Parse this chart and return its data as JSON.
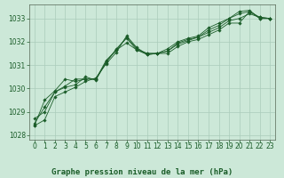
{
  "title": "Graphe pression niveau de la mer (hPa)",
  "background_color": "#cce8d8",
  "plot_bg_color": "#cce8d8",
  "grid_color": "#aaccbb",
  "line_color": "#1a5c28",
  "marker_color": "#1a5c28",
  "axis_color": "#556655",
  "xlim": [
    -0.5,
    23.5
  ],
  "ylim": [
    1027.8,
    1033.6
  ],
  "yticks": [
    1028,
    1029,
    1030,
    1031,
    1032,
    1033
  ],
  "xticks": [
    0,
    1,
    2,
    3,
    4,
    5,
    6,
    7,
    8,
    9,
    10,
    11,
    12,
    13,
    14,
    15,
    16,
    17,
    18,
    19,
    20,
    21,
    22,
    23
  ],
  "series": [
    [
      1028.4,
      1028.65,
      1029.65,
      1029.85,
      1030.05,
      1030.3,
      1030.45,
      1031.05,
      1031.55,
      1032.25,
      1031.75,
      1031.45,
      1031.5,
      1031.5,
      1031.8,
      1032.0,
      1032.1,
      1032.3,
      1032.5,
      1032.8,
      1032.8,
      1033.3,
      1033.05,
      1033.0
    ],
    [
      1028.7,
      1029.0,
      1029.85,
      1030.05,
      1030.15,
      1030.5,
      1030.35,
      1031.15,
      1031.65,
      1031.95,
      1031.65,
      1031.45,
      1031.5,
      1031.6,
      1031.9,
      1032.05,
      1032.2,
      1032.4,
      1032.6,
      1032.9,
      1033.0,
      1033.2,
      1033.05,
      1033.0
    ],
    [
      1028.5,
      1029.2,
      1029.85,
      1030.1,
      1030.4,
      1030.4,
      1030.4,
      1031.2,
      1031.65,
      1032.2,
      1031.7,
      1031.5,
      1031.5,
      1031.6,
      1031.95,
      1032.1,
      1032.2,
      1032.5,
      1032.7,
      1033.0,
      1033.2,
      1033.3,
      1033.0,
      1033.0
    ],
    [
      1028.4,
      1029.5,
      1029.9,
      1030.4,
      1030.3,
      1030.4,
      1030.4,
      1031.1,
      1031.7,
      1032.15,
      1031.65,
      1031.5,
      1031.5,
      1031.7,
      1032.0,
      1032.15,
      1032.25,
      1032.6,
      1032.8,
      1033.0,
      1033.3,
      1033.35,
      1033.0,
      1033.0
    ]
  ],
  "title_fontsize": 6.5,
  "tick_fontsize": 5.5
}
